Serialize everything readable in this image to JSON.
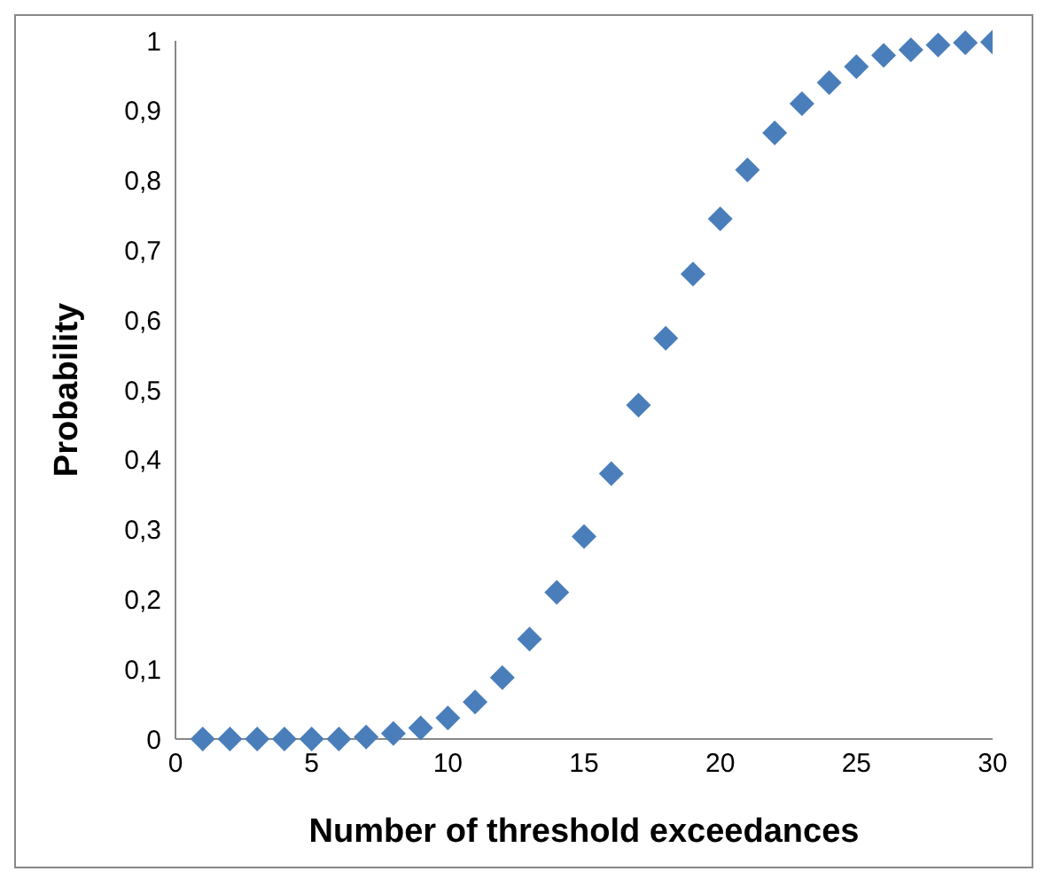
{
  "chart_data": {
    "type": "scatter",
    "xlabel": "Number of threshold exceedances",
    "ylabel": "Probability",
    "x": [
      1,
      2,
      3,
      4,
      5,
      6,
      7,
      8,
      9,
      10,
      11,
      12,
      13,
      14,
      15,
      16,
      17,
      18,
      19,
      20,
      21,
      22,
      23,
      24,
      25,
      26,
      27,
      28,
      29,
      30
    ],
    "series": [
      {
        "color": "#4a7ebb",
        "values": [
          0,
          0,
          0,
          0,
          0,
          0,
          0.003,
          0.008,
          0.016,
          0.03,
          0.053,
          0.088,
          0.143,
          0.21,
          0.29,
          0.38,
          0.478,
          0.574,
          0.666,
          0.745,
          0.815,
          0.868,
          0.91,
          0.94,
          0.963,
          0.979,
          0.987,
          0.994,
          0.997,
          0.998
        ]
      }
    ],
    "xlim": [
      0,
      30
    ],
    "xticks": [
      0,
      5,
      10,
      15,
      20,
      25,
      30
    ],
    "ylim": [
      0,
      1
    ],
    "yticks": [
      0,
      {
        "value": 0.1,
        "label": "0,1"
      },
      {
        "value": 0.2,
        "label": "0,2"
      },
      {
        "value": 0.3,
        "label": "0,3"
      },
      {
        "value": 0.4,
        "label": "0,4"
      },
      {
        "value": 0.5,
        "label": "0,5"
      },
      {
        "value": 0.6,
        "label": "0,6"
      },
      {
        "value": 0.7,
        "label": "0,7"
      },
      {
        "value": 0.8,
        "label": "0,8"
      },
      {
        "value": 0.9,
        "label": "0,9"
      },
      1
    ],
    "grid": false,
    "legend": false,
    "marker": "diamond"
  }
}
